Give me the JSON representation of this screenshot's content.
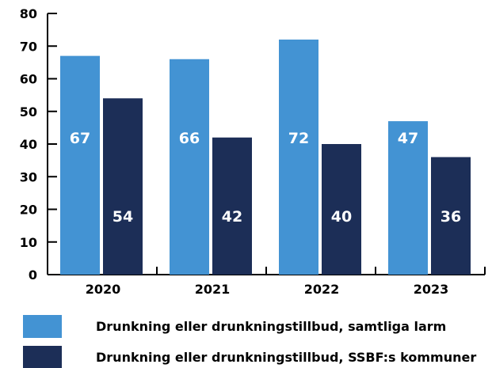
{
  "chart_data": {
    "type": "bar",
    "categories": [
      "2020",
      "2021",
      "2022",
      "2023"
    ],
    "series": [
      {
        "name": "Drunkning eller drunkningstillbud, samtliga larm",
        "values": [
          67,
          66,
          72,
          47
        ],
        "color": "#4393d3"
      },
      {
        "name": "Drunkning eller drunkningstillbud, SSBF:s kommuner",
        "values": [
          54,
          42,
          40,
          36
        ],
        "color": "#1c2e57"
      }
    ],
    "y_ticks": [
      0,
      10,
      20,
      30,
      40,
      50,
      60,
      70,
      80
    ],
    "ylim": [
      0,
      80
    ],
    "grid": false,
    "legend_position": "bottom"
  }
}
